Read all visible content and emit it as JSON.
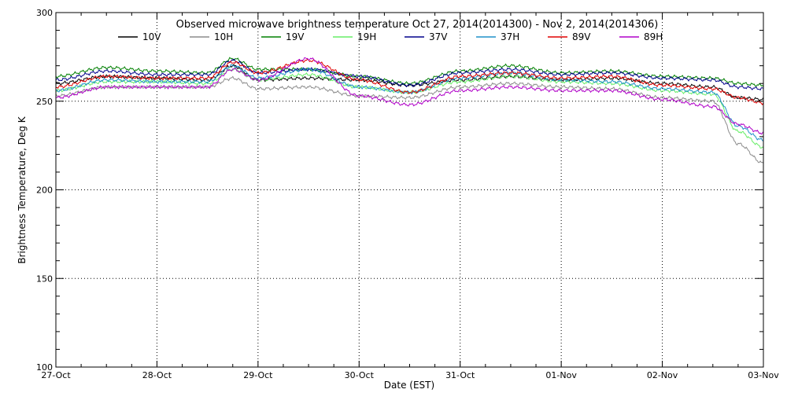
{
  "chart_data": {
    "type": "line",
    "title": "Observed microwave brightness temperature Oct 27, 2014(2014300) - Nov  2, 2014(2014306)",
    "xlabel": "Date (EST)",
    "ylabel": "Brightness Temperature, Deg K",
    "xlim": [
      "27-Oct",
      "03-Nov"
    ],
    "ylim": [
      100,
      300
    ],
    "x_ticks": [
      "27-Oct",
      "28-Oct",
      "29-Oct",
      "30-Oct",
      "31-Oct",
      "01-Nov",
      "02-Nov",
      "03-Nov"
    ],
    "y_ticks": [
      100,
      150,
      200,
      250,
      300
    ],
    "grid": "dotted",
    "legend_placement": "top",
    "series": [
      {
        "name": "10V",
        "color": "#000000",
        "x": [
          "27-Oct",
          "27-Oct 12:00",
          "28-Oct",
          "28-Oct 12:00",
          "28-Oct 18:00",
          "29-Oct",
          "29-Oct 12:00",
          "30-Oct",
          "30-Oct 12:00",
          "31-Oct",
          "31-Oct 12:00",
          "01-Nov",
          "01-Nov 12:00",
          "02-Nov",
          "02-Nov 12:00",
          "02-Nov 18:00",
          "03-Nov"
        ],
        "values": [
          260,
          264,
          263,
          262,
          270,
          262,
          263,
          262,
          259,
          262,
          264,
          262,
          263,
          260,
          258,
          252,
          251
        ]
      },
      {
        "name": "10H",
        "color": "#8c8c8c",
        "x": [
          "27-Oct",
          "27-Oct 12:00",
          "28-Oct",
          "28-Oct 12:00",
          "28-Oct 18:00",
          "29-Oct",
          "29-Oct 12:00",
          "30-Oct",
          "30-Oct 12:00",
          "31-Oct",
          "31-Oct 12:00",
          "01-Nov",
          "01-Nov 12:00",
          "02-Nov",
          "02-Nov 12:00",
          "02-Nov 18:00",
          "03-Nov"
        ],
        "values": [
          253,
          258,
          258,
          258,
          263,
          257,
          258,
          253,
          252,
          258,
          260,
          258,
          257,
          252,
          250,
          226,
          215
        ]
      },
      {
        "name": "19V",
        "color": "#008000",
        "x": [
          "27-Oct",
          "27-Oct 12:00",
          "28-Oct",
          "28-Oct 12:00",
          "28-Oct 18:00",
          "29-Oct",
          "29-Oct 12:00",
          "30-Oct",
          "30-Oct 12:00",
          "31-Oct",
          "31-Oct 12:00",
          "01-Nov",
          "01-Nov 12:00",
          "02-Nov",
          "02-Nov 12:00",
          "02-Nov 18:00",
          "03-Nov"
        ],
        "values": [
          264,
          269,
          267,
          266,
          274,
          268,
          268,
          264,
          260,
          267,
          270,
          266,
          267,
          264,
          263,
          260,
          259
        ]
      },
      {
        "name": "19H",
        "color": "#66ee66",
        "x": [
          "27-Oct",
          "27-Oct 12:00",
          "28-Oct",
          "28-Oct 12:00",
          "28-Oct 18:00",
          "29-Oct",
          "29-Oct 12:00",
          "30-Oct",
          "30-Oct 12:00",
          "31-Oct",
          "31-Oct 12:00",
          "01-Nov",
          "01-Nov 12:00",
          "02-Nov",
          "02-Nov 12:00",
          "02-Nov 18:00",
          "03-Nov"
        ],
        "values": [
          256,
          261,
          261,
          260,
          268,
          262,
          265,
          258,
          255,
          261,
          264,
          261,
          260,
          256,
          254,
          233,
          224
        ]
      },
      {
        "name": "37V",
        "color": "#00008b",
        "x": [
          "27-Oct",
          "27-Oct 12:00",
          "28-Oct",
          "28-Oct 12:00",
          "28-Oct 18:00",
          "29-Oct",
          "29-Oct 12:00",
          "30-Oct",
          "30-Oct 12:00",
          "31-Oct",
          "31-Oct 12:00",
          "01-Nov",
          "01-Nov 12:00",
          "02-Nov",
          "02-Nov 12:00",
          "02-Nov 18:00",
          "03-Nov"
        ],
        "values": [
          262,
          267,
          265,
          265,
          273,
          266,
          268,
          264,
          259,
          266,
          268,
          265,
          266,
          263,
          262,
          258,
          257
        ]
      },
      {
        "name": "37H",
        "color": "#1e90c8",
        "x": [
          "27-Oct",
          "27-Oct 12:00",
          "28-Oct",
          "28-Oct 12:00",
          "28-Oct 18:00",
          "29-Oct",
          "29-Oct 12:00",
          "30-Oct",
          "30-Oct 12:00",
          "31-Oct",
          "31-Oct 12:00",
          "01-Nov",
          "01-Nov 12:00",
          "02-Nov",
          "02-Nov 12:00",
          "02-Nov 18:00",
          "03-Nov"
        ],
        "values": [
          256,
          262,
          261,
          261,
          270,
          263,
          268,
          258,
          255,
          263,
          266,
          262,
          261,
          257,
          255,
          236,
          228
        ]
      },
      {
        "name": "89V",
        "color": "#e00000",
        "x": [
          "27-Oct",
          "27-Oct 12:00",
          "28-Oct",
          "28-Oct 12:00",
          "28-Oct 18:00",
          "29-Oct",
          "29-Oct 12:00",
          "30-Oct",
          "30-Oct 12:00",
          "31-Oct",
          "31-Oct 12:00",
          "01-Nov",
          "01-Nov 12:00",
          "02-Nov",
          "02-Nov 12:00",
          "02-Nov 18:00",
          "03-Nov"
        ],
        "values": [
          258,
          264,
          263,
          263,
          272,
          266,
          273,
          262,
          255,
          264,
          266,
          263,
          264,
          259,
          257,
          252,
          249
        ]
      },
      {
        "name": "89H",
        "color": "#b000c8",
        "x": [
          "27-Oct",
          "27-Oct 12:00",
          "28-Oct",
          "28-Oct 12:00",
          "28-Oct 18:00",
          "29-Oct",
          "29-Oct 12:00",
          "30-Oct",
          "30-Oct 12:00",
          "31-Oct",
          "31-Oct 12:00",
          "01-Nov",
          "01-Nov 12:00",
          "02-Nov",
          "02-Nov 12:00",
          "02-Nov 18:00",
          "03-Nov"
        ],
        "values": [
          252,
          258,
          258,
          258,
          268,
          262,
          274,
          253,
          248,
          256,
          258,
          256,
          256,
          251,
          247,
          237,
          232
        ]
      }
    ]
  }
}
